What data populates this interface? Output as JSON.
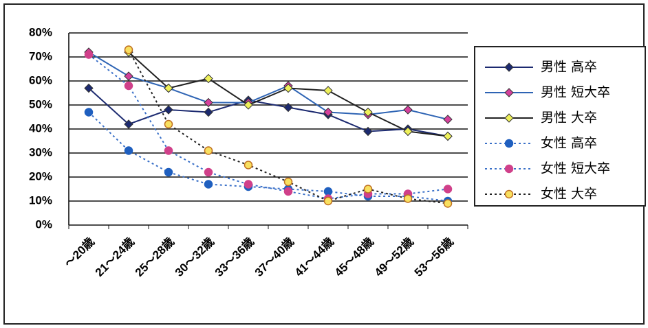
{
  "chart_data": {
    "type": "line",
    "categories": [
      "～20歳",
      "21～24歳",
      "25～28歳",
      "30～32歳",
      "33～36歳",
      "37～40歳",
      "41～44歳",
      "45～48歳",
      "49～52歳",
      "53～56歳"
    ],
    "ylim": [
      0,
      80
    ],
    "yticks": [
      {
        "value": 0,
        "label": "0%"
      },
      {
        "value": 10,
        "label": "10%"
      },
      {
        "value": 20,
        "label": "20%"
      },
      {
        "value": 30,
        "label": "30%"
      },
      {
        "value": 40,
        "label": "40%"
      },
      {
        "value": 50,
        "label": "50%"
      },
      {
        "value": 60,
        "label": "60%"
      },
      {
        "value": 70,
        "label": "70%"
      },
      {
        "value": 80,
        "label": "80%"
      }
    ],
    "grid": true,
    "legend": "right",
    "series": [
      {
        "name": "男性 高卒",
        "color": "#1c2a70",
        "marker_color": "#1c2a70",
        "marker": "diamond",
        "dashed": false,
        "values": [
          57,
          42,
          48,
          47,
          52,
          49,
          46,
          39,
          40,
          37
        ]
      },
      {
        "name": "男性 短大卒",
        "color": "#2e64b4",
        "marker_color": "#d4409c",
        "marker": "diamond",
        "dashed": false,
        "values": [
          72,
          62,
          57,
          51,
          51,
          58,
          47,
          46,
          48,
          44
        ]
      },
      {
        "name": "男性 大卒",
        "color": "#222222",
        "marker_color": "#eef05a",
        "marker": "diamond",
        "dashed": false,
        "values": [
          null,
          72,
          57,
          61,
          50,
          57,
          56,
          47,
          39,
          37
        ]
      },
      {
        "name": "女性 高卒",
        "color": "#3a70c8",
        "marker_color": "#1f5fbf",
        "marker": "circle",
        "dashed": true,
        "values": [
          47,
          31,
          22,
          17,
          16,
          15,
          14,
          12,
          12,
          10
        ]
      },
      {
        "name": "女性 短大卒",
        "color": "#3a70c8",
        "marker_color": "#d0408a",
        "marker": "circle",
        "dashed": true,
        "values": [
          71,
          58,
          31,
          22,
          17,
          14,
          11,
          13,
          13,
          15
        ]
      },
      {
        "name": "女性 大卒",
        "color": "#222222",
        "marker_color": "#f8e060",
        "marker": "circle",
        "dashed": true,
        "values": [
          null,
          73,
          42,
          31,
          25,
          18,
          10,
          15,
          11,
          9
        ]
      }
    ]
  }
}
